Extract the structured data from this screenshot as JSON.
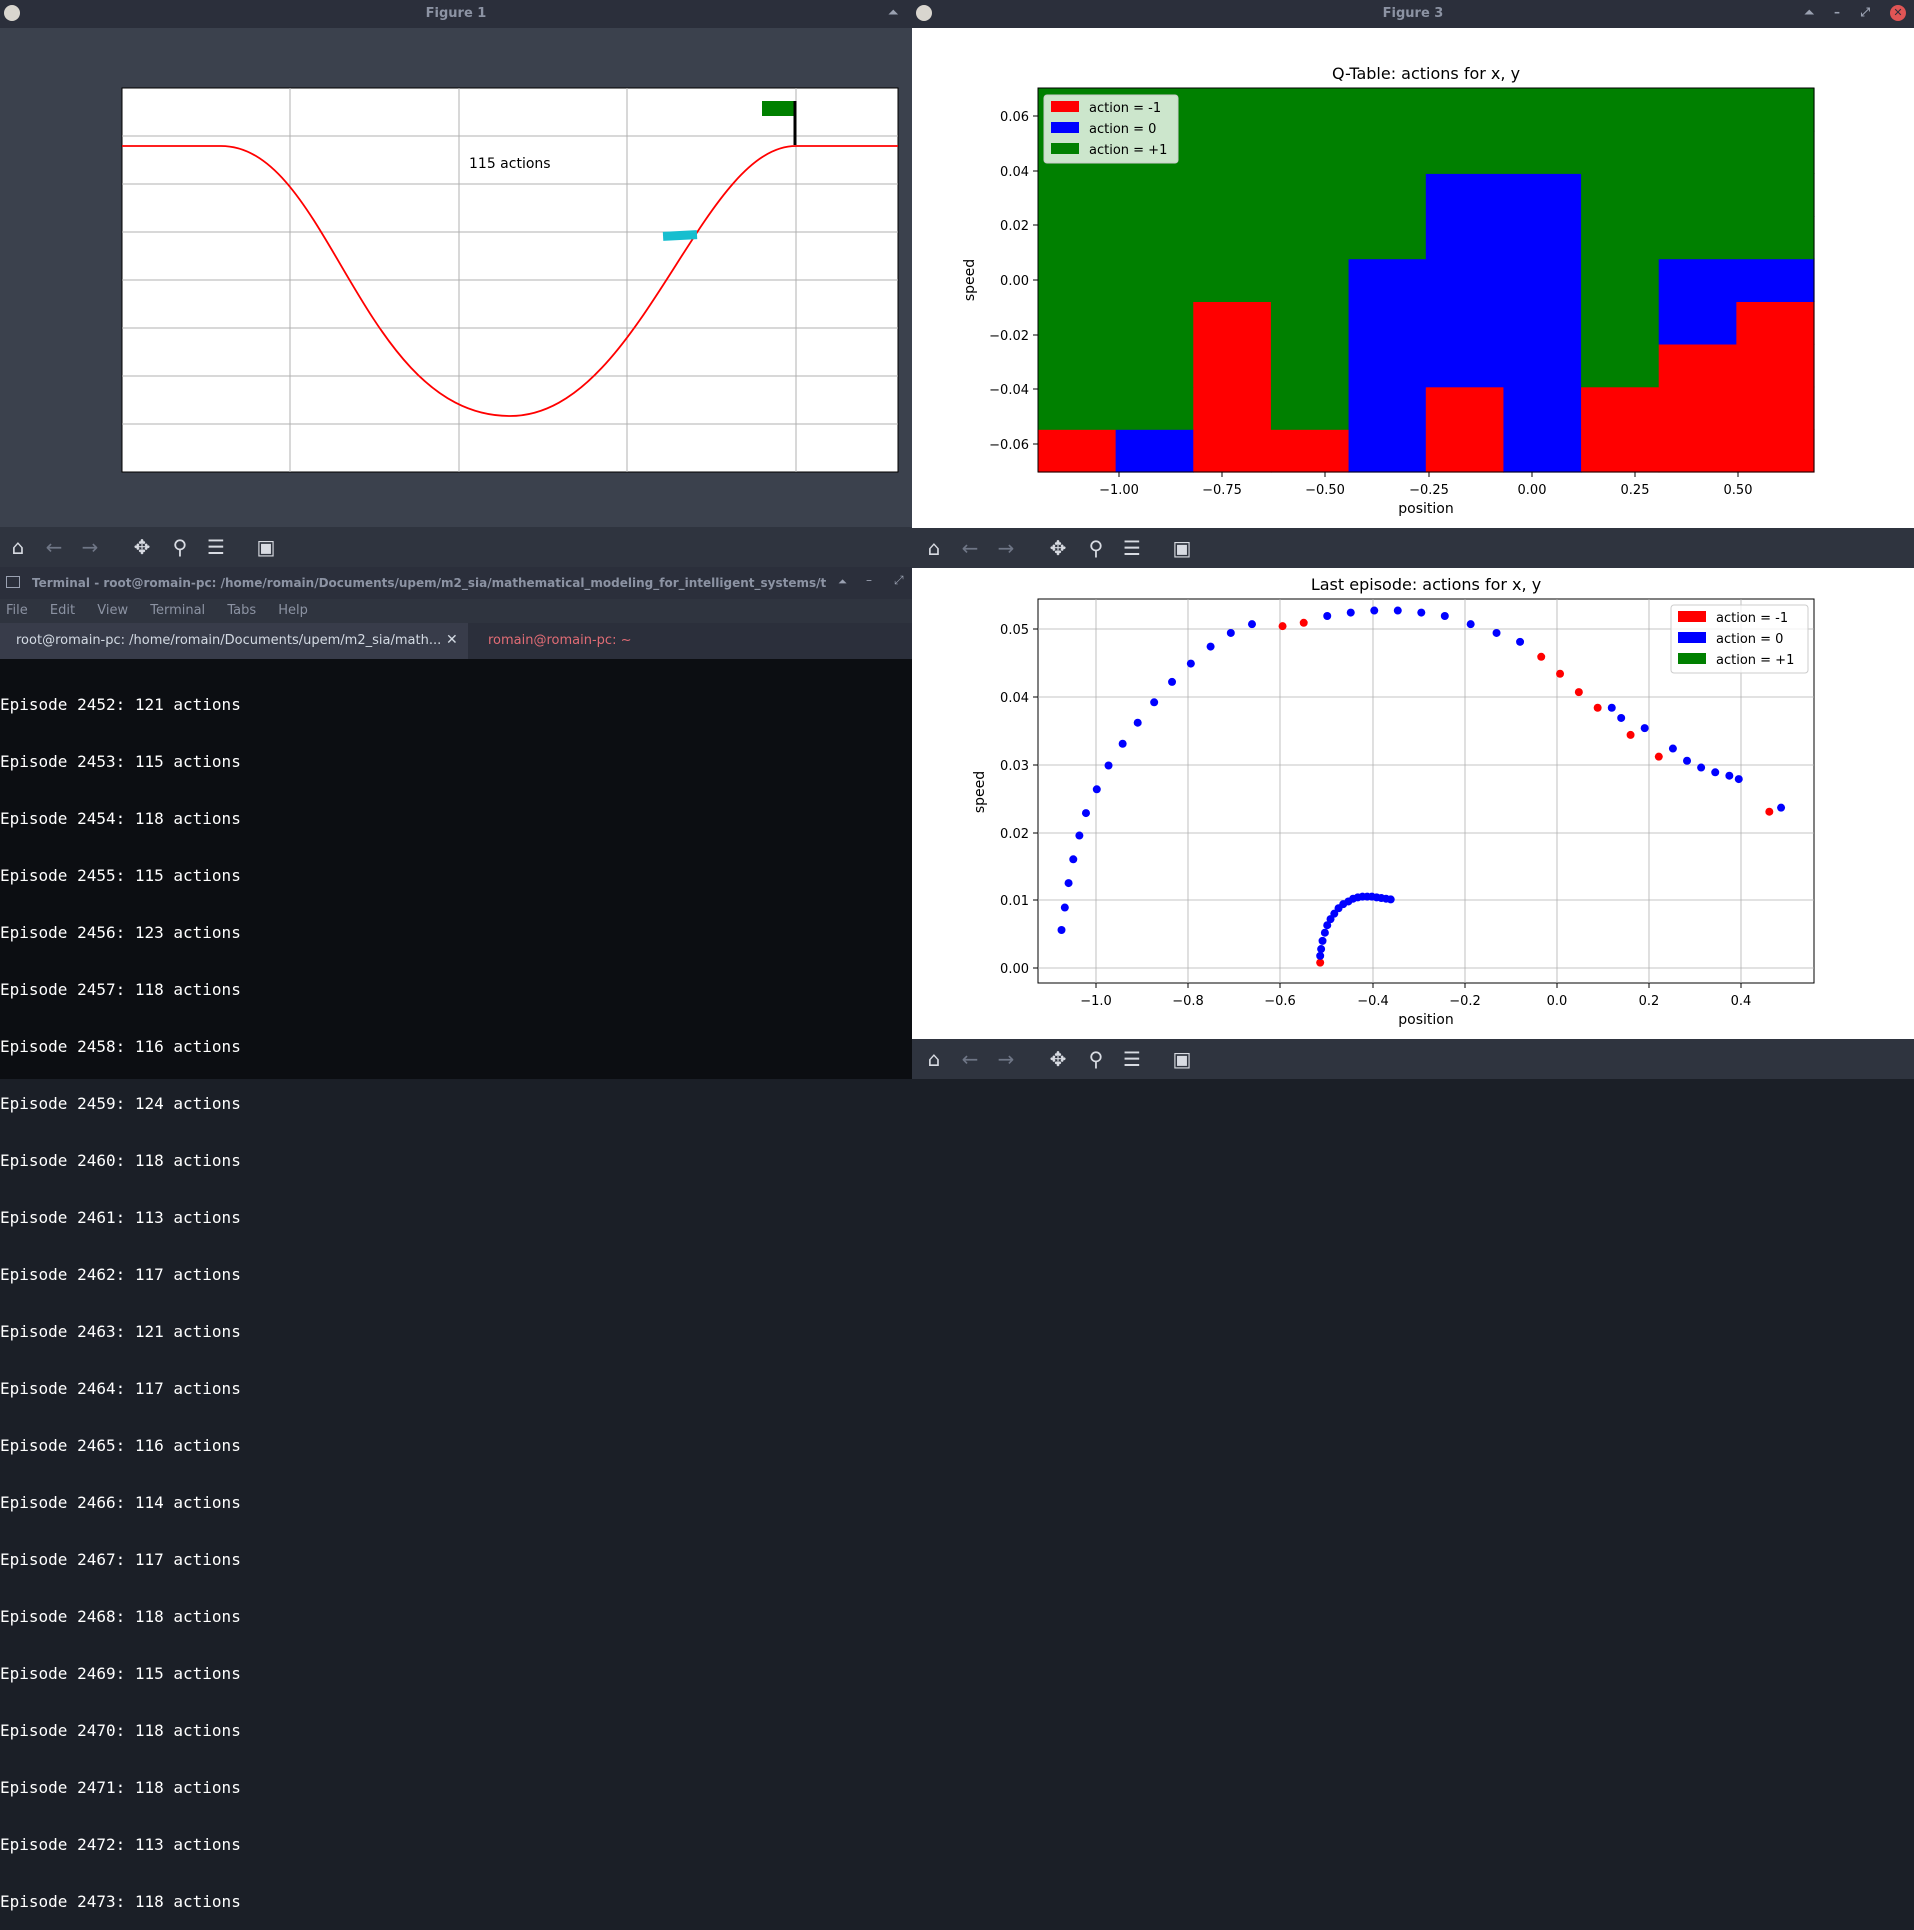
{
  "figure1": {
    "title": "Figure 1",
    "annotation": "115 actions",
    "colors": {
      "curve": "#ff0000",
      "car": "#17becf",
      "flag": "#008000",
      "pole": "#000000"
    }
  },
  "figure3": {
    "title": "Figure 3",
    "top_plot": {
      "title": "Q-Table: actions for x, y",
      "xlabel": "position",
      "ylabel": "speed",
      "xticks": [
        "−1.00",
        "−0.75",
        "−0.50",
        "−0.25",
        "0.00",
        "0.25",
        "0.50"
      ],
      "yticks": [
        "0.06",
        "0.04",
        "0.02",
        "0.00",
        "−0.02",
        "−0.04",
        "−0.06"
      ],
      "legend": [
        "action = -1",
        "action = 0",
        "action = +1"
      ]
    },
    "bottom_plot": {
      "title": "Last episode: actions for x, y",
      "xlabel": "position",
      "ylabel": "speed",
      "xticks": [
        "−1.0",
        "−0.8",
        "−0.6",
        "−0.4",
        "−0.2",
        "0.0",
        "0.2",
        "0.4"
      ],
      "yticks": [
        "0.05",
        "0.04",
        "0.03",
        "0.02",
        "0.01",
        "0.00"
      ],
      "legend": [
        "action = -1",
        "action = 0",
        "action = +1"
      ]
    }
  },
  "terminal": {
    "title": "Terminal - root@romain-pc: /home/romain/Documents/upem/m2_sia/mathematical_modeling_for_intelligent_systems/t",
    "menu": [
      "File",
      "Edit",
      "View",
      "Terminal",
      "Tabs",
      "Help"
    ],
    "tabs": [
      "root@romain-pc: /home/romain/Documents/upem/m2_sia/math...",
      "romain@romain-pc: ~"
    ],
    "lines": [
      "Episode 2452: 121 actions",
      "Episode 2453: 115 actions",
      "Episode 2454: 118 actions",
      "Episode 2455: 115 actions",
      "Episode 2456: 123 actions",
      "Episode 2457: 118 actions",
      "Episode 2458: 116 actions",
      "Episode 2459: 124 actions",
      "Episode 2460: 118 actions",
      "Episode 2461: 113 actions",
      "Episode 2462: 117 actions",
      "Episode 2463: 121 actions",
      "Episode 2464: 117 actions",
      "Episode 2465: 116 actions",
      "Episode 2466: 114 actions",
      "Episode 2467: 117 actions",
      "Episode 2468: 118 actions",
      "Episode 2469: 115 actions",
      "Episode 2470: 118 actions",
      "Episode 2471: 118 actions",
      "Episode 2472: 113 actions",
      "Episode 2473: 118 actions"
    ]
  },
  "toolbar_icons": [
    "home-icon",
    "back-icon",
    "forward-icon",
    "pan-icon",
    "zoom-icon",
    "configure-icon",
    "save-icon"
  ],
  "chart_data": [
    {
      "type": "heatmap",
      "title": "Q-Table: actions for x, y",
      "xlabel": "position",
      "ylabel": "speed",
      "x_edges": [
        -1.2,
        -1.011,
        -0.822,
        -0.633,
        -0.444,
        -0.256,
        -0.067,
        0.122,
        0.311,
        0.5,
        0.689
      ],
      "y_edges": [
        -0.07,
        -0.0544,
        -0.0389,
        -0.0233,
        -0.0078,
        0.0078,
        0.0233,
        0.0389,
        0.0544,
        0.07
      ],
      "grid_rows_bottom_to_top": [
        [
          -1,
          0,
          -1,
          -1,
          0,
          -1,
          0,
          -1,
          -1,
          -1
        ],
        [
          1,
          1,
          -1,
          1,
          0,
          -1,
          0,
          -1,
          -1,
          -1
        ],
        [
          1,
          1,
          -1,
          1,
          0,
          0,
          0,
          1,
          -1,
          -1
        ],
        [
          1,
          1,
          -1,
          1,
          0,
          0,
          0,
          1,
          0,
          -1
        ],
        [
          1,
          1,
          1,
          1,
          0,
          0,
          0,
          1,
          0,
          0
        ],
        [
          1,
          1,
          1,
          1,
          1,
          0,
          0,
          1,
          1,
          1
        ],
        [
          1,
          1,
          1,
          1,
          1,
          0,
          0,
          1,
          1,
          1
        ],
        [
          1,
          1,
          1,
          1,
          1,
          1,
          1,
          1,
          1,
          1
        ],
        [
          1,
          1,
          1,
          1,
          1,
          1,
          1,
          1,
          1,
          1
        ]
      ],
      "legend": [
        "action = -1",
        "action = 0",
        "action = +1"
      ],
      "xlim": [
        -1.2,
        0.689
      ],
      "ylim": [
        -0.07,
        0.07
      ],
      "legend_placement": "upper-left",
      "colors": {
        "-1": "#ff0000",
        "0": "#0000ff",
        "1": "#008000"
      }
    },
    {
      "type": "scatter",
      "title": "Last episode: actions for x, y",
      "xlabel": "position",
      "ylabel": "speed",
      "xlim": [
        -1.1,
        0.55
      ],
      "ylim": [
        -0.003,
        0.0535
      ],
      "grid": true,
      "legend": [
        "action = -1",
        "action = 0",
        "action = +1"
      ],
      "legend_placement": "upper-right",
      "series": [
        {
          "name": "action = -1",
          "color": "#ff0000",
          "x": [
            -0.5,
            -0.58,
            -0.535,
            -0.03,
            0.01,
            0.05,
            0.09,
            0.16,
            0.22,
            0.455
          ],
          "y": [
            0.0,
            0.0495,
            0.05,
            0.045,
            0.0425,
            0.0398,
            0.0375,
            0.0335,
            0.0303,
            0.0222
          ]
        },
        {
          "name": "action = 0",
          "color": "#0000ff",
          "x": [
            -0.5,
            -0.498,
            -0.495,
            -0.49,
            -0.485,
            -0.478,
            -0.47,
            -0.461,
            -0.451,
            -0.44,
            -0.43,
            -0.42,
            -0.41,
            -0.4,
            -0.39,
            -0.38,
            -0.37,
            -0.36,
            -0.35,
            -1.05,
            -1.043,
            -1.035,
            -1.025,
            -1.012,
            -0.998,
            -0.975,
            -0.95,
            -0.92,
            -0.888,
            -0.853,
            -0.815,
            -0.775,
            -0.733,
            -0.69,
            -0.645,
            -0.485,
            -0.435,
            -0.385,
            -0.335,
            -0.285,
            -0.235,
            -0.18,
            -0.125,
            -0.075,
            0.12,
            0.14,
            0.19,
            0.25,
            0.28,
            0.31,
            0.34,
            0.37,
            0.39,
            0.48
          ],
          "y": [
            0.001,
            0.002,
            0.0032,
            0.0044,
            0.0055,
            0.0064,
            0.0072,
            0.008,
            0.0086,
            0.009,
            0.0094,
            0.0096,
            0.0097,
            0.0097,
            0.0097,
            0.0096,
            0.0095,
            0.0094,
            0.0093,
            0.0048,
            0.0081,
            0.0117,
            0.0152,
            0.0187,
            0.022,
            0.0255,
            0.029,
            0.0322,
            0.0353,
            0.0383,
            0.0413,
            0.044,
            0.0465,
            0.0485,
            0.0498,
            0.051,
            0.0515,
            0.0518,
            0.0518,
            0.0515,
            0.051,
            0.0498,
            0.0485,
            0.0472,
            0.0375,
            0.036,
            0.0345,
            0.0315,
            0.0297,
            0.0287,
            0.028,
            0.0275,
            0.027,
            0.0228
          ]
        },
        {
          "name": "action = +1",
          "color": "#008000",
          "x": [],
          "y": []
        }
      ]
    }
  ]
}
